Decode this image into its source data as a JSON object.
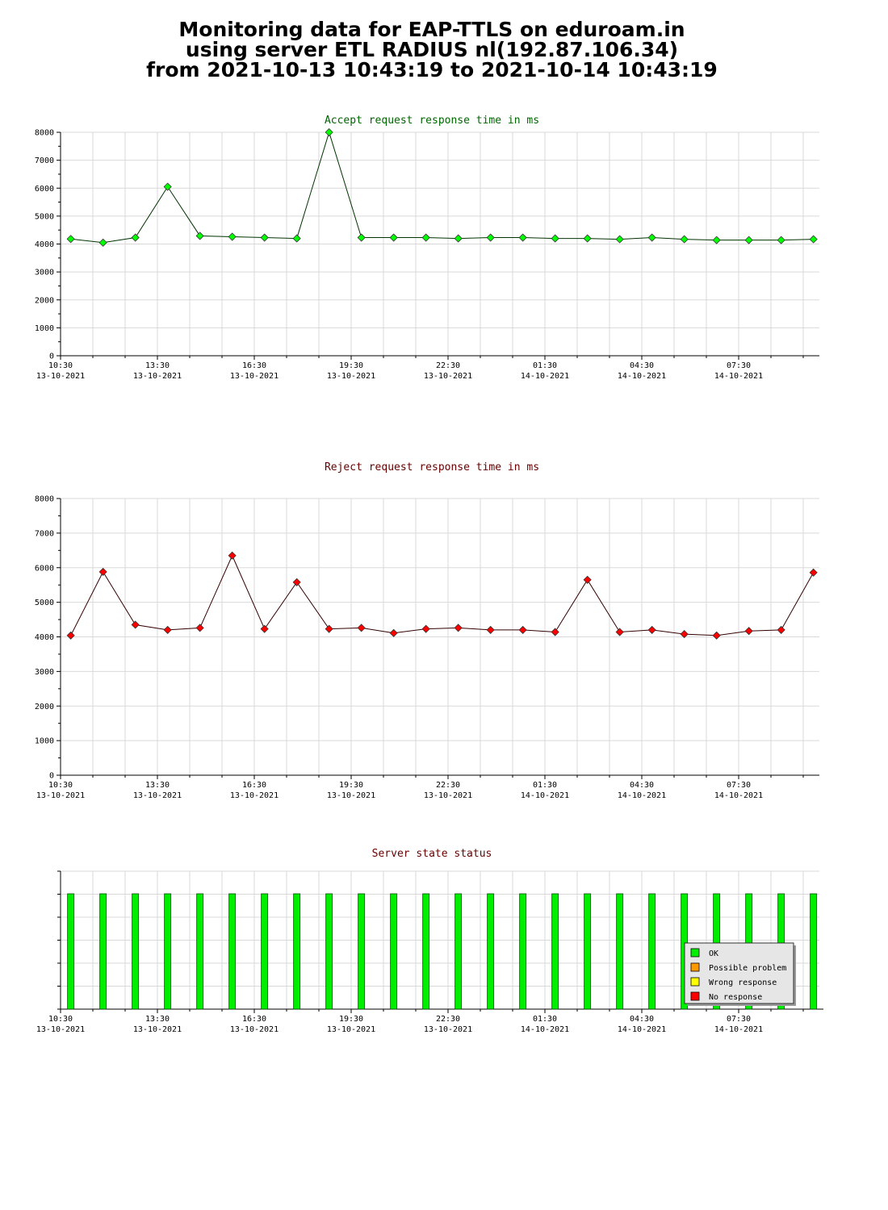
{
  "page_title": {
    "line1": "Monitoring data for EAP-TTLS on eduroam.in",
    "line2": "using server ETL RADIUS nl(192.87.106.34)",
    "line3": "from 2021-10-13 10:43:19 to 2021-10-14 10:43:19"
  },
  "colors": {
    "accept": "#00ff00",
    "accept_title": "#006600",
    "reject": "#ff0000",
    "reject_title": "#660000",
    "ok": "#00ee00",
    "possible_problem": "#ff9900",
    "wrong_response": "#ffff00",
    "no_response": "#ff0000",
    "grid": "#d9d9d9",
    "legend_bg": "#e6e6e6"
  },
  "time_axis": {
    "ticks": [
      {
        "time": "10:30",
        "date": "13-10-2021"
      },
      {
        "time": "13:30",
        "date": "13-10-2021"
      },
      {
        "time": "16:30",
        "date": "13-10-2021"
      },
      {
        "time": "19:30",
        "date": "13-10-2021"
      },
      {
        "time": "22:30",
        "date": "13-10-2021"
      },
      {
        "time": "01:30",
        "date": "14-10-2021"
      },
      {
        "time": "04:30",
        "date": "14-10-2021"
      },
      {
        "time": "07:30",
        "date": "14-10-2021"
      }
    ]
  },
  "chart_data": [
    {
      "type": "line",
      "title": "Accept request response time in ms",
      "ylim": [
        0,
        8000
      ],
      "yticks": [
        0,
        1000,
        2000,
        3000,
        4000,
        5000,
        6000,
        7000,
        8000
      ],
      "grid": true,
      "x": [
        "10:43",
        "11:43",
        "12:43",
        "13:43",
        "14:43",
        "15:43",
        "16:43",
        "17:43",
        "18:43",
        "19:43",
        "20:43",
        "21:43",
        "22:43",
        "23:43",
        "00:43",
        "01:43",
        "02:43",
        "03:43",
        "04:43",
        "05:43",
        "06:43",
        "07:43",
        "08:43",
        "09:43"
      ],
      "series": [
        {
          "values": [
            4180,
            4050,
            4230,
            6050,
            4290,
            4260,
            4230,
            4200,
            8000,
            4230,
            4230,
            4230,
            4200,
            4230,
            4230,
            4200,
            4200,
            4170,
            4230,
            4170,
            4140,
            4140,
            4140,
            4170
          ]
        }
      ]
    },
    {
      "type": "line",
      "title": "Reject request response time in ms",
      "ylim": [
        0,
        8000
      ],
      "yticks": [
        0,
        1000,
        2000,
        3000,
        4000,
        5000,
        6000,
        7000,
        8000
      ],
      "grid": true,
      "x": [
        "10:43",
        "11:43",
        "12:43",
        "13:43",
        "14:43",
        "15:43",
        "16:43",
        "17:43",
        "18:43",
        "19:43",
        "20:43",
        "21:43",
        "22:43",
        "23:43",
        "00:43",
        "01:43",
        "02:43",
        "03:43",
        "04:43",
        "05:43",
        "06:43",
        "07:43",
        "08:43",
        "09:43"
      ],
      "series": [
        {
          "values": [
            4040,
            5880,
            4350,
            4200,
            4260,
            6350,
            4230,
            5580,
            4230,
            4260,
            4110,
            4230,
            4260,
            4200,
            4200,
            4140,
            5650,
            4140,
            4200,
            4080,
            4040,
            4170,
            4200,
            5860
          ]
        }
      ]
    },
    {
      "type": "bar",
      "title": "Server state status",
      "grid": true,
      "legend_position": "bottom-right",
      "legend": [
        "OK",
        "Possible problem",
        "Wrong response",
        "No response"
      ],
      "x": [
        "10:43",
        "11:43",
        "12:43",
        "13:43",
        "14:43",
        "15:43",
        "16:43",
        "17:43",
        "18:43",
        "19:43",
        "20:43",
        "21:43",
        "22:43",
        "23:43",
        "00:43",
        "01:43",
        "02:43",
        "03:43",
        "04:43",
        "05:43",
        "06:43",
        "07:43",
        "08:43",
        "09:43"
      ],
      "series": [
        {
          "name": "OK",
          "values": [
            1,
            1,
            1,
            1,
            1,
            1,
            1,
            1,
            1,
            1,
            1,
            1,
            1,
            1,
            1,
            1,
            1,
            1,
            1,
            1,
            1,
            1,
            1,
            1
          ]
        }
      ]
    }
  ]
}
